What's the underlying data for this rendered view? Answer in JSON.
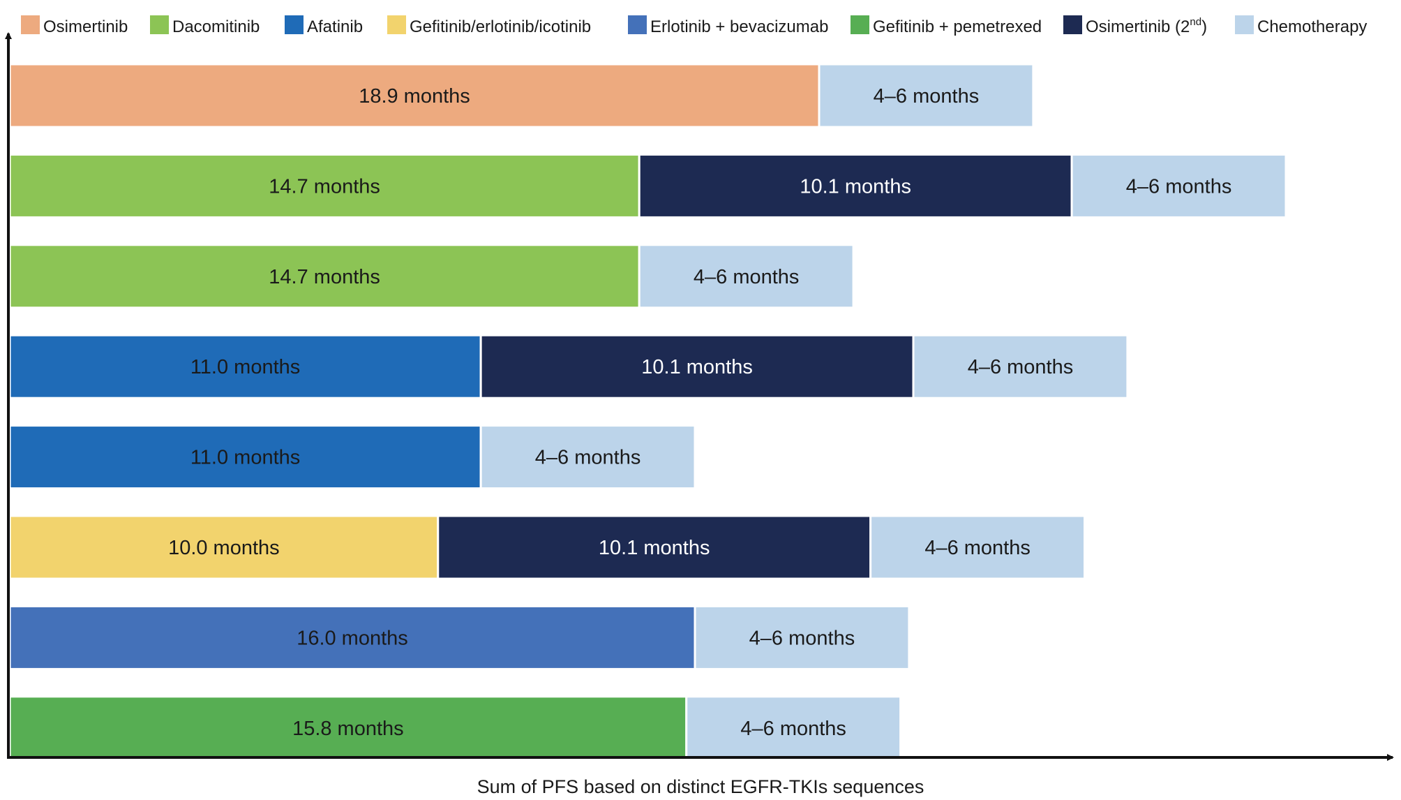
{
  "chart_data": {
    "type": "bar",
    "orientation": "horizontal",
    "stacked": true,
    "xlabel": "Sum of PFS based on distinct EGFR-TKIs sequences",
    "ylabel": "",
    "grid": false,
    "legend_position": "top",
    "legend": [
      {
        "key": "osimertinib",
        "label": "Osimertinib",
        "color": "#EDAA7F"
      },
      {
        "key": "dacomitinib",
        "label": "Dacomitinib",
        "color": "#8CC455"
      },
      {
        "key": "afatinib",
        "label": "Afatinib",
        "color": "#1F6BB7"
      },
      {
        "key": "gef_erl_ico",
        "label": "Gefitinib/erlotinib/icotinib",
        "color": "#F2D36D"
      },
      {
        "key": "erl_bev",
        "label": "Erlotinib + bevacizumab",
        "color": "#4471B9"
      },
      {
        "key": "gef_pem",
        "label": "Gefitinib + pemetrexed",
        "color": "#57AE53"
      },
      {
        "key": "osimertinib_2nd",
        "label": "Osimertinib (2",
        "label_sup": "nd",
        "label_end": ")",
        "color": "#1D2A52"
      },
      {
        "key": "chemotherapy",
        "label": "Chemotherapy",
        "color": "#BCD4EA"
      }
    ],
    "rows": [
      {
        "segments": [
          {
            "treatment": "osimertinib",
            "value": 18.9,
            "label": "18.9 months"
          },
          {
            "treatment": "chemotherapy",
            "value": 5,
            "range": [
              4,
              6
            ],
            "label": "4–6 months"
          }
        ]
      },
      {
        "segments": [
          {
            "treatment": "dacomitinib",
            "value": 14.7,
            "label": "14.7 months"
          },
          {
            "treatment": "osimertinib_2nd",
            "value": 10.1,
            "label": "10.1 months"
          },
          {
            "treatment": "chemotherapy",
            "value": 5,
            "range": [
              4,
              6
            ],
            "label": "4–6 months"
          }
        ]
      },
      {
        "segments": [
          {
            "treatment": "dacomitinib",
            "value": 14.7,
            "label": "14.7 months"
          },
          {
            "treatment": "chemotherapy",
            "value": 5,
            "range": [
              4,
              6
            ],
            "label": "4–6 months"
          }
        ]
      },
      {
        "segments": [
          {
            "treatment": "afatinib",
            "value": 11.0,
            "label": "11.0 months"
          },
          {
            "treatment": "osimertinib_2nd",
            "value": 10.1,
            "label": "10.1 months"
          },
          {
            "treatment": "chemotherapy",
            "value": 5,
            "range": [
              4,
              6
            ],
            "label": "4–6 months"
          }
        ]
      },
      {
        "segments": [
          {
            "treatment": "afatinib",
            "value": 11.0,
            "label": "11.0 months"
          },
          {
            "treatment": "chemotherapy",
            "value": 5,
            "range": [
              4,
              6
            ],
            "label": "4–6 months"
          }
        ]
      },
      {
        "segments": [
          {
            "treatment": "gef_erl_ico",
            "value": 10.0,
            "label": "10.0 months"
          },
          {
            "treatment": "osimertinib_2nd",
            "value": 10.1,
            "label": "10.1 months"
          },
          {
            "treatment": "chemotherapy",
            "value": 5,
            "range": [
              4,
              6
            ],
            "label": "4–6 months"
          }
        ]
      },
      {
        "segments": [
          {
            "treatment": "erl_bev",
            "value": 16.0,
            "label": "16.0 months"
          },
          {
            "treatment": "chemotherapy",
            "value": 5,
            "range": [
              4,
              6
            ],
            "label": "4–6 months"
          }
        ]
      },
      {
        "segments": [
          {
            "treatment": "gef_pem",
            "value": 15.8,
            "label": "15.8 months"
          },
          {
            "treatment": "chemotherapy",
            "value": 5,
            "range": [
              4,
              6
            ],
            "label": "4–6 months"
          }
        ]
      }
    ]
  }
}
